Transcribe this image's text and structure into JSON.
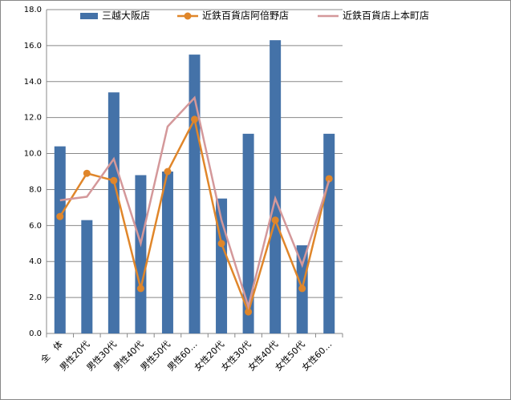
{
  "chart_data": {
    "type": "bar",
    "categories": [
      "全　体",
      "男性20代",
      "男性30代",
      "男性40代",
      "男性50代",
      "男性60…",
      "女性20代",
      "女性30代",
      "女性40代",
      "女性50代",
      "女性60…"
    ],
    "series": [
      {
        "name": "三越大阪店",
        "type": "bar",
        "color": "#4472a8",
        "values": [
          10.4,
          6.3,
          13.4,
          8.8,
          9.0,
          15.5,
          7.5,
          11.1,
          16.3,
          4.9,
          11.1
        ]
      },
      {
        "name": "近鉄百貨店阿倍野店",
        "type": "line",
        "marker": true,
        "color": "#e0862a",
        "values": [
          6.5,
          8.9,
          8.5,
          2.5,
          9.0,
          11.9,
          5.0,
          1.2,
          6.3,
          2.5,
          8.6
        ]
      },
      {
        "name": "近鉄百貨店上本町店",
        "type": "line",
        "marker": false,
        "color": "#d4989a",
        "values": [
          7.4,
          7.6,
          9.7,
          5.0,
          11.5,
          13.1,
          6.3,
          1.5,
          7.5,
          3.8,
          8.5
        ]
      }
    ],
    "ylim": [
      0,
      18
    ],
    "yticks": [
      {
        "value": 0,
        "label": "0.0"
      },
      {
        "value": 2,
        "label": "2.0"
      },
      {
        "value": 4,
        "label": "4.0"
      },
      {
        "value": 6,
        "label": "6.0"
      },
      {
        "value": 8,
        "label": "8.0"
      },
      {
        "value": 10,
        "label": "10.0"
      },
      {
        "value": 12,
        "label": "12.0"
      },
      {
        "value": 14,
        "label": "14.0"
      },
      {
        "value": 16,
        "label": "16.0"
      },
      {
        "value": 18,
        "label": "18.0"
      }
    ],
    "grid": true
  }
}
